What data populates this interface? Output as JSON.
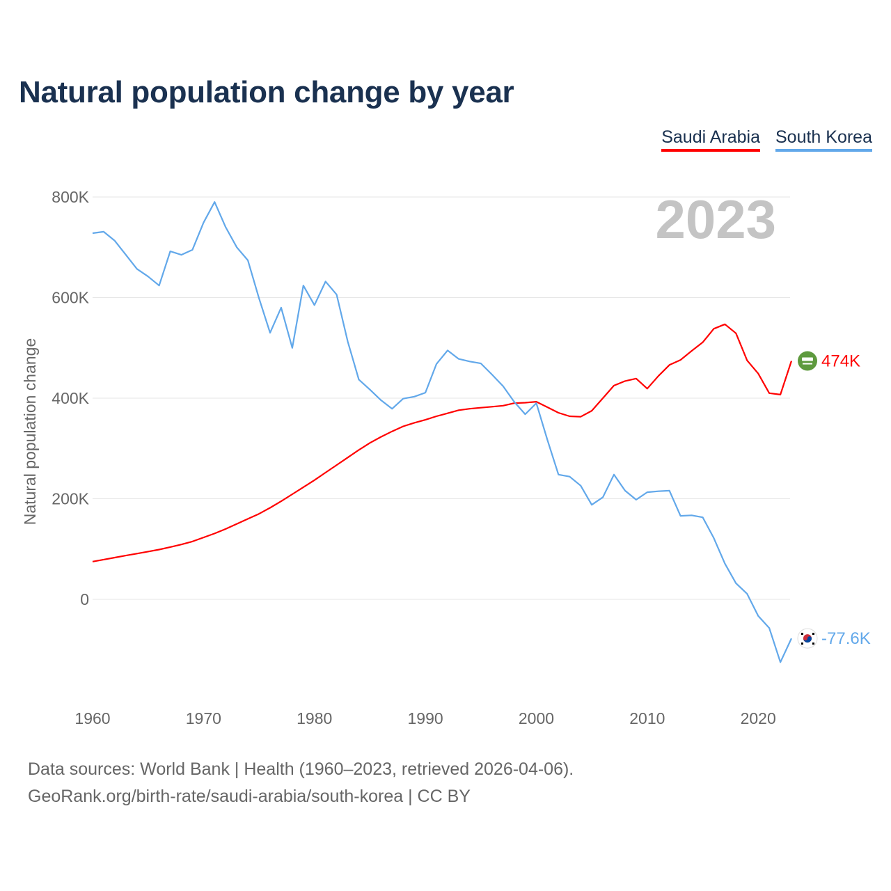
{
  "title": "Natural population change by year",
  "footer": {
    "line1": "Data sources: World Bank | Health (1960–2023, retrieved 2026-04-06).",
    "line2": "GeoRank.org/birth-rate/saudi-arabia/south-korea | CC BY"
  },
  "chart_data": {
    "type": "line",
    "title": "Natural population change by year",
    "xlabel": "",
    "ylabel": "Natural population change",
    "xlim": [
      1960,
      2023
    ],
    "ylim": [
      -150000,
      800000
    ],
    "grid": true,
    "legend_position": "top-right",
    "current_year_label": "2023",
    "yticks": [
      0,
      200000,
      400000,
      600000,
      800000
    ],
    "ytick_labels": [
      "0",
      "200K",
      "400K",
      "600K",
      "800K"
    ],
    "xticks": [
      1960,
      1970,
      1980,
      1990,
      2000,
      2010,
      2020
    ],
    "xtick_labels": [
      "1960",
      "1970",
      "1980",
      "1990",
      "2000",
      "2010",
      "2020"
    ],
    "x": [
      1960,
      1961,
      1962,
      1963,
      1964,
      1965,
      1966,
      1967,
      1968,
      1969,
      1970,
      1971,
      1972,
      1973,
      1974,
      1975,
      1976,
      1977,
      1978,
      1979,
      1980,
      1981,
      1982,
      1983,
      1984,
      1985,
      1986,
      1987,
      1988,
      1989,
      1990,
      1991,
      1992,
      1993,
      1994,
      1995,
      1996,
      1997,
      1998,
      1999,
      2000,
      2001,
      2002,
      2003,
      2004,
      2005,
      2006,
      2007,
      2008,
      2009,
      2010,
      2011,
      2012,
      2013,
      2014,
      2015,
      2016,
      2017,
      2018,
      2019,
      2020,
      2021,
      2022,
      2023
    ],
    "series": [
      {
        "name": "Saudi Arabia",
        "color": "#ff0000",
        "end_label": "474K",
        "flag_icon": "saudi-arabia-flag",
        "values": [
          75000,
          79000,
          83000,
          87000,
          91000,
          95000,
          99000,
          104000,
          109000,
          115000,
          123000,
          131000,
          140000,
          150000,
          160000,
          170000,
          182000,
          195000,
          209000,
          223000,
          237000,
          252000,
          267000,
          282000,
          297000,
          311000,
          323000,
          334000,
          344000,
          351000,
          357000,
          364000,
          370000,
          376000,
          379000,
          381000,
          383000,
          385000,
          390000,
          391000,
          393000,
          382000,
          371000,
          364000,
          363000,
          375000,
          400000,
          425000,
          434000,
          439000,
          419000,
          444000,
          466000,
          476000,
          494000,
          511000,
          538000,
          547000,
          529000,
          475000,
          449000,
          410000,
          407000,
          474000
        ]
      },
      {
        "name": "South Korea",
        "color": "#62a8ea",
        "end_label": "-77.6K",
        "flag_icon": "south-korea-flag",
        "values": [
          728000,
          731000,
          713000,
          685000,
          657000,
          642000,
          624000,
          692000,
          685000,
          695000,
          749000,
          790000,
          740000,
          700000,
          674000,
          599000,
          530000,
          580000,
          500000,
          624000,
          585000,
          632000,
          606000,
          513000,
          437000,
          417000,
          396000,
          379000,
          399000,
          403000,
          411000,
          468000,
          495000,
          478000,
          473000,
          469000,
          447000,
          424000,
          393000,
          368000,
          390000,
          317000,
          248000,
          244000,
          226000,
          188000,
          203000,
          248000,
          216000,
          198000,
          213000,
          215000,
          216000,
          166000,
          167000,
          163000,
          122000,
          71000,
          32000,
          11000,
          -33000,
          -57000,
          -125000,
          -77600
        ]
      }
    ]
  }
}
